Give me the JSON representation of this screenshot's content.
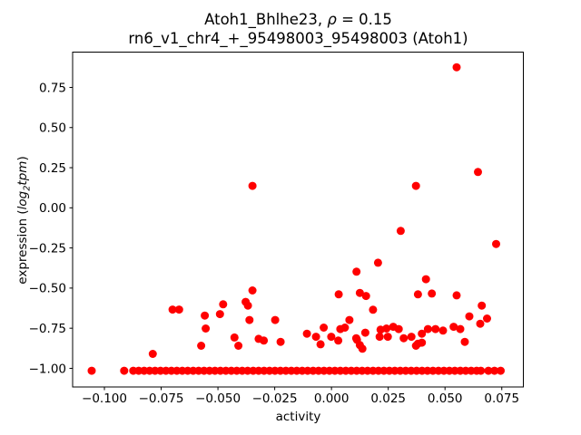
{
  "chart_data": {
    "type": "scatter",
    "title_line1_prefix": "Atoh1_Bhlhe23, ",
    "title_rho": "ρ",
    "title_line1_suffix": " = 0.15",
    "title_line2": "rn6_v1_chr4_+_95498003_95498003 (Atoh1)",
    "xlabel": "activity",
    "ylabel": "expression (log2tpm)",
    "ylabel_parts": {
      "prefix": "expression (",
      "math1": "log",
      "sub": "2",
      "math2": "tpm",
      "suffix": ")"
    },
    "marker_color": "#ff0000",
    "axis_color": "#000000",
    "grid": false,
    "legend": "none",
    "xlim": [
      -0.114,
      0.0845
    ],
    "ylim": [
      -1.116,
      0.97
    ],
    "xticks": [
      -0.1,
      -0.075,
      -0.05,
      -0.025,
      0.0,
      0.025,
      0.05,
      0.075
    ],
    "xtick_labels": [
      "−0.100",
      "−0.075",
      "−0.050",
      "−0.025",
      "0.000",
      "0.025",
      "0.050",
      "0.075"
    ],
    "yticks": [
      -1.0,
      -0.75,
      -0.5,
      -0.25,
      0.0,
      0.25,
      0.5,
      0.75
    ],
    "ytick_labels": [
      "−1.00",
      "−0.75",
      "−0.50",
      "−0.25",
      "0.00",
      "0.25",
      "0.50",
      "0.75"
    ],
    "points": [
      [
        0.0551,
        0.876
      ],
      [
        0.0645,
        0.223
      ],
      [
        -0.0348,
        0.137
      ],
      [
        0.0372,
        0.137
      ],
      [
        0.0305,
        -0.144
      ],
      [
        0.0725,
        -0.225
      ],
      [
        0.0205,
        -0.342
      ],
      [
        0.011,
        -0.398
      ],
      [
        0.0416,
        -0.445
      ],
      [
        -0.0348,
        -0.515
      ],
      [
        0.0125,
        -0.53
      ],
      [
        0.0152,
        -0.549
      ],
      [
        0.0032,
        -0.539
      ],
      [
        0.0381,
        -0.539
      ],
      [
        0.0442,
        -0.534
      ],
      [
        0.0551,
        -0.545
      ],
      [
        -0.0378,
        -0.586
      ],
      [
        -0.0368,
        -0.609
      ],
      [
        -0.0477,
        -0.601
      ],
      [
        0.0662,
        -0.609
      ],
      [
        -0.07,
        -0.634
      ],
      [
        -0.0671,
        -0.634
      ],
      [
        0.0183,
        -0.635
      ],
      [
        -0.0558,
        -0.671
      ],
      [
        -0.0491,
        -0.662
      ],
      [
        0.0607,
        -0.676
      ],
      [
        -0.0361,
        -0.699
      ],
      [
        -0.0248,
        -0.699
      ],
      [
        0.0079,
        -0.699
      ],
      [
        0.0685,
        -0.69
      ],
      [
        0.0655,
        -0.722
      ],
      [
        -0.0554,
        -0.752
      ],
      [
        0.0216,
        -0.759
      ],
      [
        0.0242,
        -0.752
      ],
      [
        0.0272,
        -0.741
      ],
      [
        0.0296,
        -0.755
      ],
      [
        -0.0034,
        -0.746
      ],
      [
        0.0039,
        -0.755
      ],
      [
        0.0059,
        -0.746
      ],
      [
        0.0149,
        -0.778
      ],
      [
        0.0109,
        -0.812
      ],
      [
        0.0212,
        -0.803
      ],
      [
        0.0248,
        -0.803
      ],
      [
        0.0318,
        -0.812
      ],
      [
        0.0352,
        -0.803
      ],
      [
        0.0398,
        -0.784
      ],
      [
        -0.0108,
        -0.784
      ],
      [
        -0.0068,
        -0.803
      ],
      [
        -0.0001,
        -0.803
      ],
      [
        -0.0427,
        -0.808
      ],
      [
        0.0491,
        -0.765
      ],
      [
        0.0538,
        -0.741
      ],
      [
        0.0567,
        -0.755
      ],
      [
        0.0425,
        -0.755
      ],
      [
        0.0458,
        -0.755
      ],
      [
        -0.0321,
        -0.816
      ],
      [
        -0.0298,
        -0.827
      ],
      [
        -0.0224,
        -0.835
      ],
      [
        -0.0048,
        -0.85
      ],
      [
        0.003,
        -0.827
      ],
      [
        -0.041,
        -0.859
      ],
      [
        -0.0574,
        -0.859
      ],
      [
        0.0112,
        -0.822
      ],
      [
        0.0125,
        -0.855
      ],
      [
        0.0136,
        -0.878
      ],
      [
        0.0381,
        -0.846
      ],
      [
        0.0398,
        -0.84
      ],
      [
        0.0372,
        -0.859
      ],
      [
        0.0587,
        -0.835
      ],
      [
        -0.0787,
        -0.91
      ],
      [
        -0.1056,
        -1.015
      ],
      [
        -0.0913,
        -1.015
      ],
      [
        -0.0873,
        -1.015
      ],
      [
        -0.0849,
        -1.015
      ],
      [
        -0.0825,
        -1.015
      ],
      [
        -0.0801,
        -1.015
      ],
      [
        -0.0777,
        -1.015
      ],
      [
        -0.0753,
        -1.015
      ],
      [
        -0.0729,
        -1.015
      ],
      [
        -0.0705,
        -1.015
      ],
      [
        -0.0681,
        -1.015
      ],
      [
        -0.0657,
        -1.015
      ],
      [
        -0.0633,
        -1.015
      ],
      [
        -0.0609,
        -1.015
      ],
      [
        -0.0585,
        -1.015
      ],
      [
        -0.0561,
        -1.015
      ],
      [
        -0.0537,
        -1.015
      ],
      [
        -0.0513,
        -1.015
      ],
      [
        -0.0489,
        -1.015
      ],
      [
        -0.0465,
        -1.015
      ],
      [
        -0.0441,
        -1.015
      ],
      [
        -0.0417,
        -1.015
      ],
      [
        -0.0393,
        -1.015
      ],
      [
        -0.0369,
        -1.015
      ],
      [
        -0.0345,
        -1.015
      ],
      [
        -0.0321,
        -1.015
      ],
      [
        -0.0297,
        -1.015
      ],
      [
        -0.0273,
        -1.015
      ],
      [
        -0.0249,
        -1.015
      ],
      [
        -0.0225,
        -1.015
      ],
      [
        -0.0201,
        -1.015
      ],
      [
        -0.0177,
        -1.015
      ],
      [
        -0.0153,
        -1.015
      ],
      [
        -0.0129,
        -1.015
      ],
      [
        -0.0105,
        -1.015
      ],
      [
        -0.0081,
        -1.015
      ],
      [
        -0.0057,
        -1.015
      ],
      [
        -0.0033,
        -1.015
      ],
      [
        -0.0009,
        -1.015
      ],
      [
        0.0015,
        -1.015
      ],
      [
        0.0039,
        -1.015
      ],
      [
        0.0063,
        -1.015
      ],
      [
        0.0087,
        -1.015
      ],
      [
        0.0111,
        -1.015
      ],
      [
        0.0135,
        -1.015
      ],
      [
        0.0159,
        -1.015
      ],
      [
        0.0183,
        -1.015
      ],
      [
        0.0207,
        -1.015
      ],
      [
        0.0231,
        -1.015
      ],
      [
        0.0255,
        -1.015
      ],
      [
        0.0279,
        -1.015
      ],
      [
        0.0303,
        -1.015
      ],
      [
        0.0327,
        -1.015
      ],
      [
        0.0351,
        -1.015
      ],
      [
        0.0375,
        -1.015
      ],
      [
        0.0399,
        -1.015
      ],
      [
        0.0423,
        -1.015
      ],
      [
        0.0447,
        -1.015
      ],
      [
        0.0471,
        -1.015
      ],
      [
        0.0495,
        -1.015
      ],
      [
        0.0519,
        -1.015
      ],
      [
        0.0543,
        -1.015
      ],
      [
        0.0567,
        -1.015
      ],
      [
        0.0591,
        -1.015
      ],
      [
        0.0615,
        -1.015
      ],
      [
        0.0639,
        -1.015
      ],
      [
        0.0658,
        -1.015
      ],
      [
        0.0691,
        -1.015
      ],
      [
        0.0718,
        -1.015
      ],
      [
        0.0745,
        -1.015
      ]
    ]
  }
}
